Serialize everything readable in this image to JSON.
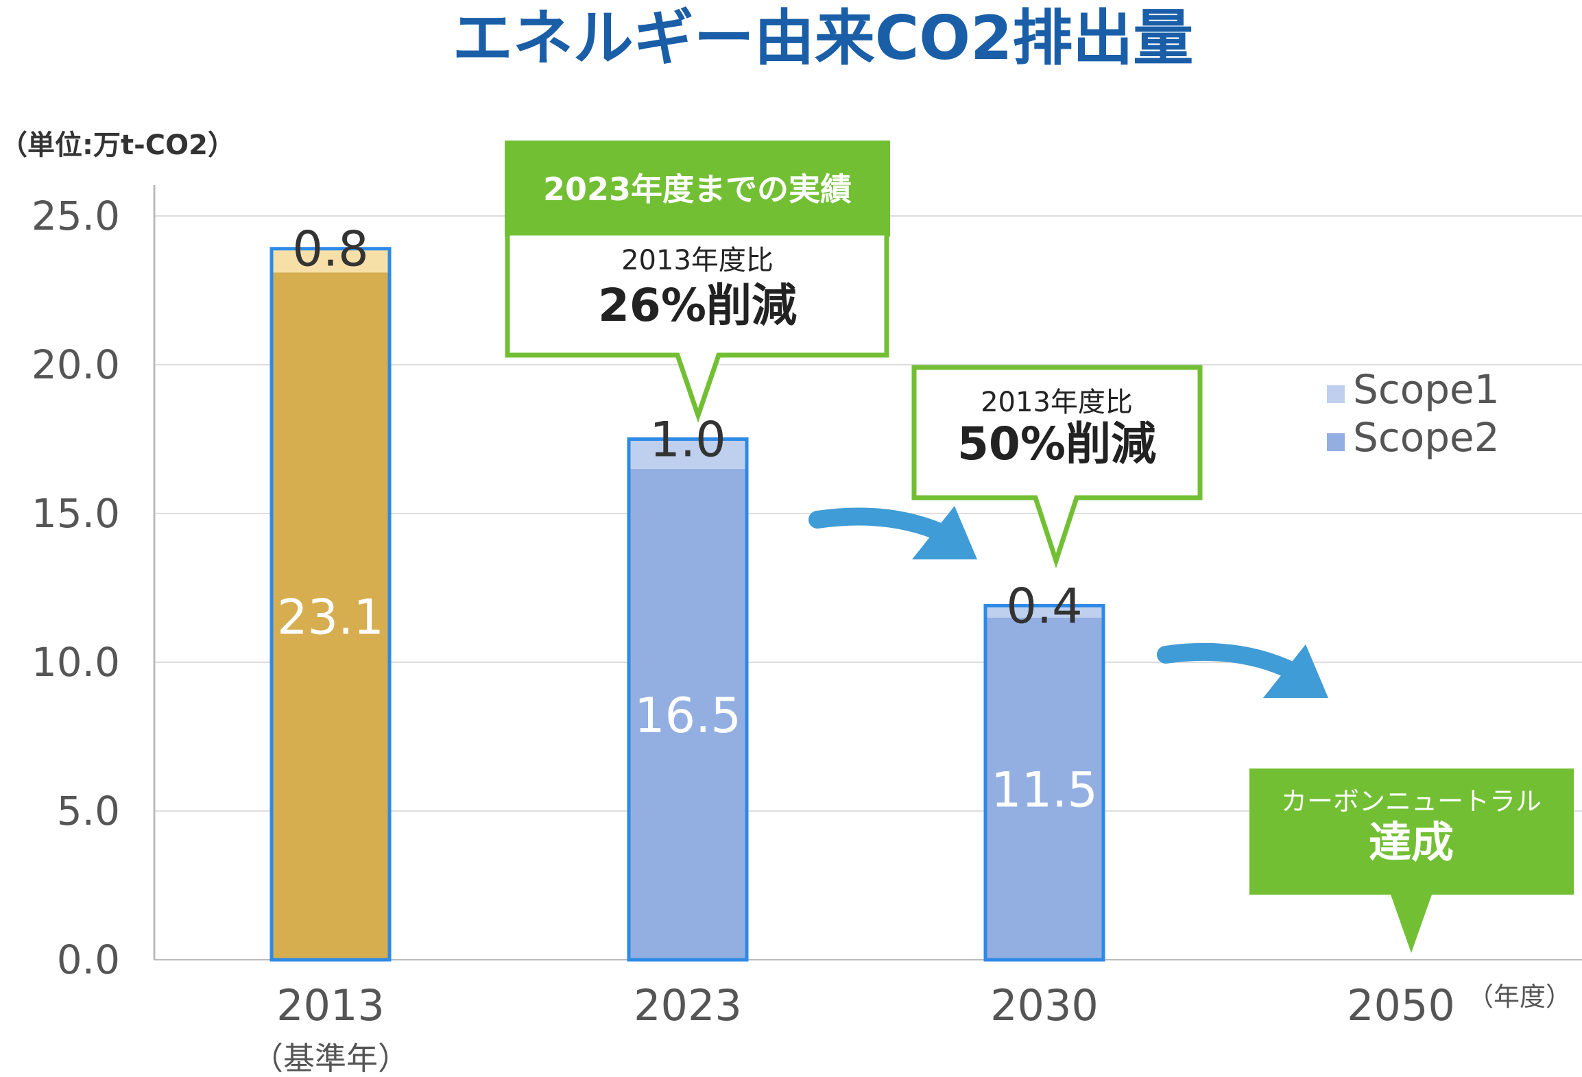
{
  "chart_data": {
    "type": "bar",
    "stacked": true,
    "title": "エネルギー由来CO2排出量",
    "unit_label": "（単位:万t-CO2）",
    "x_unit_label": "（年度）",
    "categories": [
      "2013",
      "2023",
      "2030",
      "2050"
    ],
    "category_sublabels": [
      "（基準年）",
      "",
      "",
      ""
    ],
    "ylim": [
      0,
      25
    ],
    "yticks": [
      "0.0",
      "5.0",
      "10.0",
      "15.0",
      "20.0",
      "25.0"
    ],
    "grid": true,
    "legend_position": "right",
    "series": [
      {
        "name": "Scope2",
        "values": [
          23.1,
          16.5,
          11.5,
          null
        ],
        "labels": [
          "23.1",
          "16.5",
          "11.5",
          ""
        ]
      },
      {
        "name": "Scope1",
        "values": [
          0.8,
          1.0,
          0.4,
          null
        ],
        "labels": [
          "0.8",
          "1.0",
          "0.4",
          ""
        ]
      }
    ],
    "annotations": {
      "header_2023": "2023年度までの実績",
      "callout_2023_line1": "2013年度比",
      "callout_2023_line2": "26%削減",
      "callout_2030_line1": "2013年度比",
      "callout_2030_line2": "50%削減",
      "callout_2050_line1": "カーボンニュートラル",
      "callout_2050_line2": "達成"
    }
  },
  "colors": {
    "title": "#1a5ea8",
    "baseline_scope2": "#d6ad4f",
    "baseline_scope1": "#f7dfa8",
    "scope2": "#93afe2",
    "scope1": "#bfd0ee",
    "bar_border": "#2d8ae6",
    "green": "#72bf34",
    "arrow": "#3f9cd6",
    "axis_text": "#555555",
    "grid": "#dddddd"
  }
}
